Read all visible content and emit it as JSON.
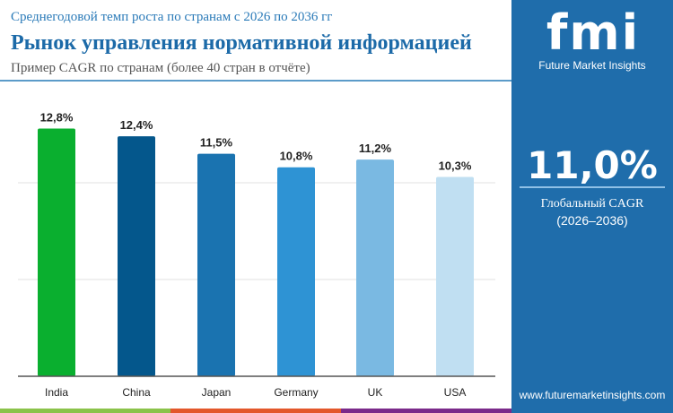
{
  "header": {
    "subtitle": "Среднегодовой темп роста по странам с 2026 по 2036 гг",
    "title": "Рынок управления нормативной информацией",
    "note": "Пример CAGR по странам (более 40 стран в отчёте)"
  },
  "sidebar": {
    "logo": "fmi",
    "brand": "Future Market Insights",
    "global_value": "11,0%",
    "global_label": "Глобальный CAGR",
    "period": "(2026–2036)",
    "url": "www.futuremarketinsights.com"
  },
  "chart_data": {
    "type": "bar",
    "categories": [
      "India",
      "China",
      "Japan",
      "Germany",
      "UK",
      "USA"
    ],
    "values": [
      12.8,
      12.4,
      11.5,
      10.8,
      11.2,
      10.3
    ],
    "labels": [
      "12,8%",
      "12,4%",
      "11,5%",
      "10,8%",
      "11,2%",
      "10,3%"
    ],
    "colors": [
      "#0aaf2f",
      "#04578c",
      "#1a73b0",
      "#2e93d4",
      "#7ab9e2",
      "#c0dff2"
    ],
    "ylim": [
      0,
      15
    ],
    "grid": true,
    "gridlines": [
      5,
      10
    ]
  },
  "footer_colors": [
    "#8bc34a",
    "#e3572b",
    "#7b2a8a"
  ]
}
